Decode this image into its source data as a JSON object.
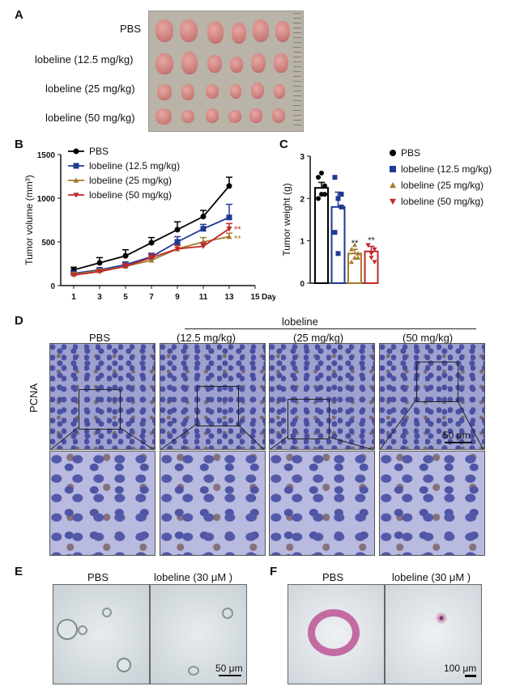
{
  "panels": {
    "a": "A",
    "b": "B",
    "c": "C",
    "d": "D",
    "e": "E",
    "f": "F"
  },
  "panel_a": {
    "rows": [
      "PBS",
      "lobeline (12.5 mg/kg)",
      "lobeline (25 mg/kg)",
      "lobeline (50 mg/kg)"
    ]
  },
  "chart_data": [
    {
      "type": "line",
      "panel": "B",
      "ylabel": "Tumor volume (mm³)",
      "xlabel": "Days",
      "x": [
        1,
        3,
        5,
        7,
        9,
        11,
        13
      ],
      "xticks": [
        "1",
        "3",
        "5",
        "7",
        "9",
        "11",
        "13",
        "15"
      ],
      "yticks": [
        "0",
        "500",
        "1000",
        "1500"
      ],
      "xlim": [
        0,
        15
      ],
      "ylim": [
        0,
        1500
      ],
      "series": [
        {
          "name": "PBS",
          "color": "#000000",
          "marker": "circle",
          "values": [
            180,
            260,
            340,
            490,
            640,
            790,
            1140
          ],
          "err": [
            30,
            60,
            70,
            60,
            90,
            70,
            100
          ]
        },
        {
          "name": "lobeline (12.5 mg/kg)",
          "color": "#1f3a93",
          "marker": "square",
          "values": [
            140,
            180,
            240,
            330,
            500,
            650,
            780
          ],
          "err": [
            20,
            20,
            30,
            40,
            60,
            50,
            150
          ]
        },
        {
          "name": "lobeline (25 mg/kg)",
          "color": "#a57b2e",
          "marker": "triangle-up",
          "values": [
            130,
            170,
            220,
            290,
            420,
            500,
            560
          ],
          "err": [
            20,
            20,
            30,
            30,
            40,
            50,
            40
          ]
        },
        {
          "name": "lobeline (50 mg/kg)",
          "color": "#c0282a",
          "marker": "triangle-down",
          "values": [
            120,
            160,
            220,
            320,
            420,
            450,
            650
          ],
          "err": [
            20,
            20,
            30,
            40,
            40,
            40,
            60
          ]
        }
      ],
      "annotations": [
        "**",
        "**"
      ]
    },
    {
      "type": "bar",
      "panel": "C",
      "ylabel": "Tumor weight (g)",
      "yticks": [
        "0",
        "1",
        "2",
        "3"
      ],
      "ylim": [
        0,
        3
      ],
      "categories": [
        "PBS",
        "lobeline (12.5 mg/kg)",
        "lobeline (25 mg/kg)",
        "lobeline (50 mg/kg)"
      ],
      "values": [
        2.25,
        1.8,
        0.7,
        0.75
      ],
      "err": [
        0.13,
        0.35,
        0.1,
        0.12
      ],
      "colors": [
        "#000000",
        "#1f3a93",
        "#a57b2e",
        "#c0282a"
      ],
      "markers": [
        "circle",
        "square",
        "triangle-up",
        "triangle-down"
      ],
      "points": [
        [
          2.5,
          2.1,
          2.3,
          2.0,
          2.6,
          2.1
        ],
        [
          2.5,
          2.0,
          1.8,
          1.2,
          0.7,
          2.1
        ],
        [
          0.8,
          0.6,
          0.7,
          0.5,
          0.9,
          0.6
        ],
        [
          0.9,
          0.7,
          0.5,
          0.9,
          0.6,
          0.8
        ]
      ],
      "annotations": [
        "",
        "",
        "**",
        "**"
      ],
      "legend": [
        "PBS",
        "lobeline (12.5 mg/kg)",
        "lobeline (25 mg/kg)",
        "lobeline (50 mg/kg)"
      ]
    }
  ],
  "panel_d": {
    "group_label": "lobeline",
    "cols": [
      "PBS",
      "(12.5 mg/kg)",
      "(25 mg/kg)",
      "(50 mg/kg)"
    ],
    "row_label": "PCNA",
    "scale": "50 μm"
  },
  "panel_e": {
    "left": "PBS",
    "right": "lobeline (30 μM )",
    "scale": "50 μm"
  },
  "panel_f": {
    "left": "PBS",
    "right": "lobeline (30 μM )",
    "scale": "100 μm"
  }
}
